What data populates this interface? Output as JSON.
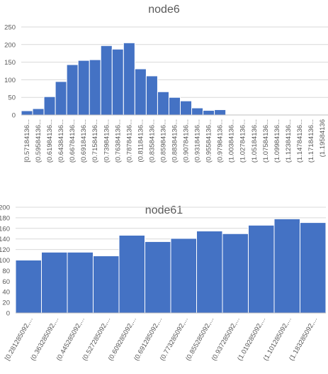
{
  "chart_data": [
    {
      "type": "bar",
      "title": "node6",
      "xlabel": "",
      "ylabel": "",
      "ylim": [
        0,
        250
      ],
      "yticks": [
        0,
        50,
        100,
        150,
        200,
        250
      ],
      "grid": true,
      "legend": "none",
      "bar_color": "#4472C4",
      "categories": [
        "[0.57184136...",
        "(0.59584136...",
        "(0.61984136...",
        "(0.64384136...",
        "(0.66784136...",
        "(0.69184136...",
        "(0.71584136...",
        "(0.73984136...",
        "(0.76384136...",
        "(0.78784136...",
        "(0.81184136...",
        "(0.83584136...",
        "(0.85984136...",
        "(0.88384136...",
        "(0.90784136...",
        "(0.93184136...",
        "(0.95584136...",
        "(0.97984136...",
        "(1.00384136...",
        "(1.02784136...",
        "(1.05184136...",
        "(1.07584136...",
        "(1.09984136...",
        "(1.12384136...",
        "(1.14784136...",
        "(1.17184136...",
        "(1.19584136"
      ],
      "values": [
        12,
        18,
        52,
        95,
        143,
        155,
        157,
        197,
        187,
        205,
        131,
        111,
        66,
        50,
        40,
        20,
        13,
        15,
        0,
        0,
        0,
        0,
        0,
        0,
        0,
        0,
        0
      ]
    },
    {
      "type": "bar",
      "title": "node61",
      "xlabel": "",
      "ylabel": "",
      "ylim": [
        0,
        200
      ],
      "yticks": [
        0,
        20,
        40,
        60,
        80,
        100,
        120,
        140,
        160,
        180,
        200
      ],
      "grid": true,
      "legend": "none",
      "bar_color": "#4472C4",
      "categories": [
        "[0.281285092,...",
        "(0.363285092,...",
        "(0.445285092,...",
        "(0.527285092,...",
        "(0.609285092,...",
        "(0.691285092,...",
        "(0.773285092,...",
        "(0.855285092,...",
        "(0.937285092,...",
        "(1.019285092,...",
        "(1.101285092,...",
        "(1.183285092,..."
      ],
      "values": [
        100,
        115,
        115,
        108,
        147,
        135,
        141,
        155,
        150,
        166,
        178,
        171
      ]
    }
  ]
}
